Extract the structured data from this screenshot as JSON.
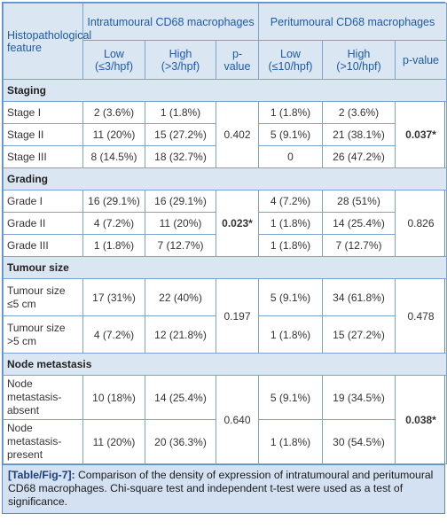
{
  "table": {
    "header": {
      "feature": "Histopathological feature",
      "groups": [
        "Intratumoural CD68 macrophages",
        "Peritumoural CD68 macrophages"
      ],
      "columns": [
        "Low (≤3/hpf)",
        "High (>3/hpf)",
        "p-value",
        "Low (≤10/hpf)",
        "High (>10/hpf)",
        "p-value"
      ]
    },
    "sections": [
      {
        "title": "Staging",
        "p_intra": "0.402",
        "p_peri": "0.037*",
        "rows": [
          {
            "label": "Stage I",
            "cells": [
              "2 (3.6%)",
              "1 (1.8%)",
              "1 (1.8%)",
              "2 (3.6%)"
            ]
          },
          {
            "label": "Stage II",
            "cells": [
              "11 (20%)",
              "15 (27.2%)",
              "5 (9.1%)",
              "21 (38.1%)"
            ]
          },
          {
            "label": "Stage III",
            "cells": [
              "8 (14.5%)",
              "18 (32.7%)",
              "0",
              "26 (47.2%)"
            ]
          }
        ]
      },
      {
        "title": "Grading",
        "p_intra": "0.023*",
        "p_peri": "0.826",
        "rows": [
          {
            "label": "Grade I",
            "cells": [
              "16 (29.1%)",
              "16 (29.1%)",
              "4 (7.2%)",
              "28 (51%)"
            ]
          },
          {
            "label": "Grade II",
            "cells": [
              "4 (7.2%)",
              "11 (20%)",
              "1 (1.8%)",
              "14 (25.4%)"
            ]
          },
          {
            "label": "Grade III",
            "cells": [
              "1 (1.8%)",
              "7 (12.7%)",
              "1 (1.8%)",
              "7 (12.7%)"
            ]
          }
        ]
      },
      {
        "title": "Tumour size",
        "p_intra": "0.197",
        "p_peri": "0.478",
        "rows": [
          {
            "label": "Tumour size ≤5 cm",
            "cells": [
              "17 (31%)",
              "22 (40%)",
              "5 (9.1%)",
              "34 (61.8%)"
            ]
          },
          {
            "label": "Tumour size >5 cm",
            "cells": [
              "4 (7.2%)",
              "12 (21.8%)",
              "1 (1.8%)",
              "15 (27.2%)"
            ]
          }
        ]
      },
      {
        "title": "Node metastasis",
        "p_intra": "0.640",
        "p_peri": "0.038*",
        "rows": [
          {
            "label": "Node metastasis-absent",
            "cells": [
              "10 (18%)",
              "14 (25.4%)",
              "5 (9.1%)",
              "19 (34.5%)"
            ]
          },
          {
            "label": "Node metastasis-present",
            "cells": [
              "11 (20%)",
              "20 (36.3%)",
              "1 (1.8%)",
              "30 (54.5%)"
            ]
          }
        ]
      }
    ]
  },
  "caption": {
    "label": "[Table/Fig-7]:",
    "text": "Comparison of the density of expression of intratumoural and peritumoural CD68 macrophages. Chi-square test and independent t-test were used as a test of significance."
  }
}
